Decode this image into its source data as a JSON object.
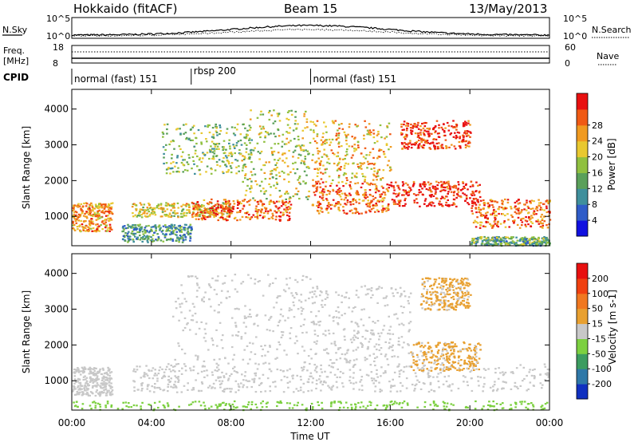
{
  "header": {
    "station": "Hokkaido (fitACF)",
    "beam": "Beam 15",
    "date": "13/May/2013"
  },
  "noise_panel": {
    "left_label": "N.Sky",
    "right_label": "N.Search",
    "left_ticks": [
      "10^5",
      "10^0"
    ],
    "right_ticks": [
      "10^5",
      "10^0"
    ]
  },
  "freq_panel": {
    "left_label_line1": "Freq.",
    "left_label_line2": "[MHz]",
    "right_label": "Nave",
    "left_ticks": [
      "18",
      "8"
    ],
    "right_ticks": [
      "60",
      "0"
    ]
  },
  "cpid": {
    "label": "CPID",
    "segments": [
      {
        "name": "normal (fast) 151",
        "start_hour": 0,
        "end_hour": 6
      },
      {
        "name": "rbsp 200",
        "start_hour": 6,
        "end_hour": 12
      },
      {
        "name": "normal (fast) 151",
        "start_hour": 12,
        "end_hour": 24
      }
    ]
  },
  "x_axis": {
    "label": "Time UT",
    "range_hours": [
      0,
      24
    ],
    "ticks": [
      {
        "hour": 0,
        "label": "00:00"
      },
      {
        "hour": 4,
        "label": "04:00"
      },
      {
        "hour": 8,
        "label": "08:00"
      },
      {
        "hour": 12,
        "label": "12:00"
      },
      {
        "hour": 16,
        "label": "16:00"
      },
      {
        "hour": 20,
        "label": "20:00"
      },
      {
        "hour": 24,
        "label": "00:00"
      }
    ]
  },
  "chart_data": [
    {
      "type": "heatmap",
      "name": "power",
      "ylabel": "Slant Range [km]",
      "ylim": [
        180,
        4550
      ],
      "yticks": [
        1000,
        2000,
        3000,
        4000
      ],
      "colorbar": {
        "label": "Power [dB]",
        "ticks": [
          "4",
          "8",
          "12",
          "16",
          "20",
          "24",
          "28"
        ],
        "range": [
          0,
          30
        ],
        "colors": [
          "#1010e0",
          "#2f5cc8",
          "#3f8f9c",
          "#5aa05a",
          "#90c040",
          "#e8c830",
          "#f09a20",
          "#f05a14",
          "#e81010"
        ]
      },
      "scatter_bands": [
        {
          "x": [
            0.0,
            2.0
          ],
          "y": [
            600,
            1400
          ],
          "power": 22
        },
        {
          "x": [
            2.5,
            6.0
          ],
          "y": [
            300,
            800
          ],
          "power": 10
        },
        {
          "x": [
            3.0,
            8.0
          ],
          "y": [
            1000,
            1400
          ],
          "power": 18
        },
        {
          "x": [
            6.0,
            11.0
          ],
          "y": [
            900,
            1500
          ],
          "power": 25
        },
        {
          "x": [
            4.5,
            9.0
          ],
          "y": [
            2200,
            3600
          ],
          "power": 14
        },
        {
          "x": [
            8.5,
            12.0
          ],
          "y": [
            1500,
            4000
          ],
          "power": 16
        },
        {
          "x": [
            12.0,
            16.0
          ],
          "y": [
            1100,
            2000
          ],
          "power": 24
        },
        {
          "x": [
            12.0,
            16.0
          ],
          "y": [
            2000,
            3700
          ],
          "power": 20
        },
        {
          "x": [
            16.0,
            20.5
          ],
          "y": [
            1300,
            2000
          ],
          "power": 28
        },
        {
          "x": [
            16.5,
            20.0
          ],
          "y": [
            2900,
            3700
          ],
          "power": 27
        },
        {
          "x": [
            20.0,
            24.0
          ],
          "y": [
            700,
            1500
          ],
          "power": 24
        },
        {
          "x": [
            20.0,
            24.0
          ],
          "y": [
            200,
            450
          ],
          "power": 12
        }
      ]
    },
    {
      "type": "heatmap",
      "name": "velocity",
      "ylabel": "Slant Range [km]",
      "ylim": [
        180,
        4550
      ],
      "yticks": [
        1000,
        2000,
        3000,
        4000
      ],
      "colorbar": {
        "label": "Velocity [m s-1]",
        "ticks": [
          "200",
          "100",
          "50",
          "15",
          "-15",
          "-50",
          "-100",
          "-200"
        ],
        "range": [
          -250,
          250
        ],
        "colors": [
          "#1030c0",
          "#2f78a8",
          "#3c9c60",
          "#7cd040",
          "#c8c8c8",
          "#e8a030",
          "#f07820",
          "#f04010",
          "#e81010"
        ]
      },
      "scatter_bands": [
        {
          "x": [
            0.0,
            2.0
          ],
          "y": [
            600,
            1400
          ],
          "velocity": 0
        },
        {
          "x": [
            3.0,
            12.0
          ],
          "y": [
            700,
            1500
          ],
          "velocity": 0
        },
        {
          "x": [
            5.0,
            12.0
          ],
          "y": [
            1500,
            4000
          ],
          "velocity": 0
        },
        {
          "x": [
            12.0,
            24.0
          ],
          "y": [
            700,
            1500
          ],
          "velocity": 0
        },
        {
          "x": [
            12.0,
            17.0
          ],
          "y": [
            1500,
            3700
          ],
          "velocity": 0
        },
        {
          "x": [
            17.0,
            20.5
          ],
          "y": [
            1300,
            2100
          ],
          "velocity": 40
        },
        {
          "x": [
            17.5,
            20.0
          ],
          "y": [
            3000,
            3900
          ],
          "velocity": 40
        },
        {
          "x": [
            0.0,
            24.0
          ],
          "y": [
            200,
            450
          ],
          "velocity": -60
        }
      ]
    }
  ]
}
